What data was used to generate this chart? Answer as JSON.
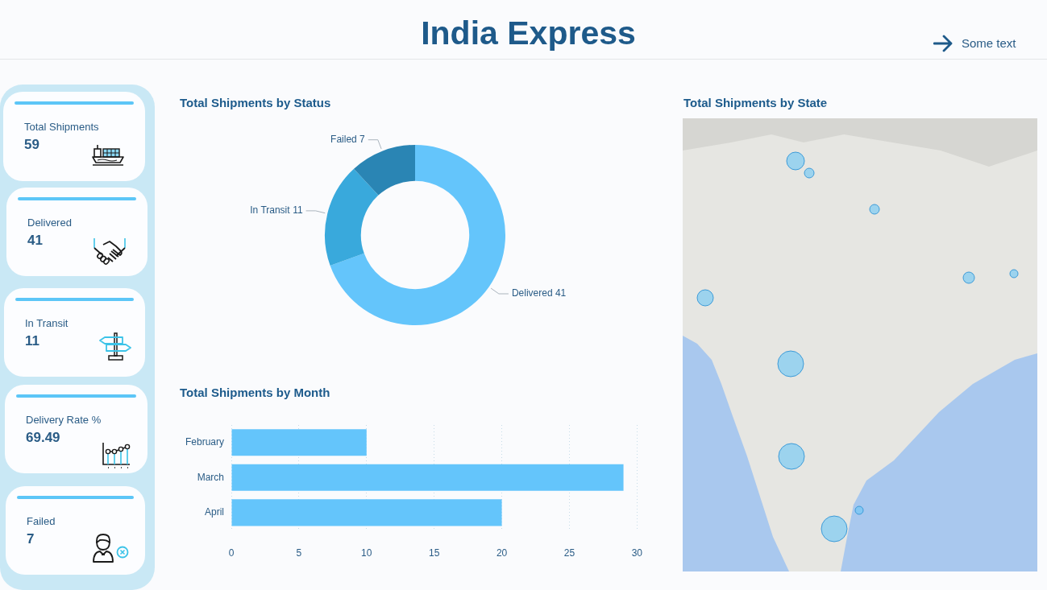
{
  "chart_data": [
    {
      "type": "other",
      "title": "India Express",
      "annotations": [
        "Some text"
      ]
    },
    {
      "type": "other",
      "annotations": [
        "Total Shipments",
        "59",
        "Delivered",
        "41",
        "In Transit",
        "11",
        "Delivery Rate %",
        "69.49",
        "Failed",
        "7"
      ]
    },
    {
      "type": "donut",
      "title": "Total Shipments by Status",
      "categories": [
        "Delivered",
        "In Transit",
        "Failed"
      ],
      "values": [
        41,
        11,
        7
      ],
      "colors": [
        "#64c5fb",
        "#39a9dc",
        "#2a85b4"
      ],
      "data_labels": true
    },
    {
      "type": "bar",
      "orientation": "horizontal",
      "title": "Total Shipments by Month",
      "categories": [
        "February",
        "March",
        "April"
      ],
      "values": [
        10,
        29,
        20
      ],
      "color": "#64c5fb",
      "xlim": [
        0,
        30
      ],
      "xticks": [
        0,
        5,
        10,
        15,
        20,
        25,
        30
      ],
      "grid": "x"
    },
    {
      "type": "other",
      "title": "Total Shipments by State"
    }
  ]
}
